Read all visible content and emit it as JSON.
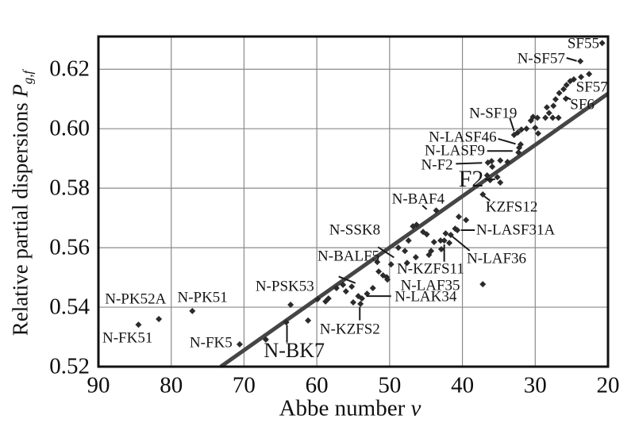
{
  "colors": {
    "point": "#2b2b2b",
    "normal_line": "#454545",
    "grid": "#8a8a8a",
    "border": "#111111",
    "text": "#111111",
    "background": "#ffffff"
  },
  "chart_data": {
    "type": "scatter",
    "title": "",
    "xlabel": "Abbe number v",
    "ylabel": "Relative partial dispersions Pg,f",
    "x_axis": {
      "label_prefix": "Abbe number ",
      "label_symbol": "v",
      "min": 20,
      "max": 90,
      "reversed": true,
      "ticks": [
        "90",
        "80",
        "70",
        "60",
        "50",
        "40",
        "30",
        "20"
      ],
      "grid": true
    },
    "y_axis": {
      "label_prefix": "Relative partial dispersions ",
      "label_symbol": "P",
      "label_subscript": "g,f",
      "min": 0.52,
      "max": 0.631,
      "ticks": [
        "0.52",
        "0.54",
        "0.56",
        "0.58",
        "0.60",
        "0.62"
      ],
      "grid": true
    },
    "normal_line": {
      "x": [
        73.2,
        20.0
      ],
      "y": [
        0.52,
        0.6118
      ]
    },
    "points": [
      [
        84.5,
        0.5341
      ],
      [
        81.7,
        0.536
      ],
      [
        77.1,
        0.5387
      ],
      [
        70.6,
        0.5275
      ],
      [
        67.0,
        0.5291
      ],
      [
        64.2,
        0.5349
      ],
      [
        63.6,
        0.5408
      ],
      [
        61.2,
        0.5355
      ],
      [
        59.9,
        0.5427
      ],
      [
        58.8,
        0.5419
      ],
      [
        58.4,
        0.5429
      ],
      [
        57.3,
        0.5464
      ],
      [
        56.4,
        0.5475
      ],
      [
        56.0,
        0.5453
      ],
      [
        55.2,
        0.5469
      ],
      [
        55.0,
        0.5416
      ],
      [
        54.3,
        0.5437
      ],
      [
        53.8,
        0.5429
      ],
      [
        54.0,
        0.5411
      ],
      [
        53.1,
        0.5445
      ],
      [
        52.3,
        0.5464
      ],
      [
        51.7,
        0.5552
      ],
      [
        51.5,
        0.552
      ],
      [
        50.9,
        0.5507
      ],
      [
        50.4,
        0.5501
      ],
      [
        50.3,
        0.5493
      ],
      [
        49.8,
        0.5544
      ],
      [
        48.8,
        0.56
      ],
      [
        47.9,
        0.5589
      ],
      [
        47.6,
        0.5549
      ],
      [
        47.4,
        0.5624
      ],
      [
        46.8,
        0.5672
      ],
      [
        46.3,
        0.5677
      ],
      [
        46.4,
        0.5568
      ],
      [
        45.4,
        0.5653
      ],
      [
        44.9,
        0.5645
      ],
      [
        44.6,
        0.5576
      ],
      [
        44.3,
        0.5589
      ],
      [
        43.9,
        0.5619
      ],
      [
        43.6,
        0.5725
      ],
      [
        43.0,
        0.5624
      ],
      [
        42.9,
        0.5595
      ],
      [
        42.5,
        0.5624
      ],
      [
        42.3,
        0.5648
      ],
      [
        41.8,
        0.5616
      ],
      [
        41.0,
        0.5664
      ],
      [
        40.7,
        0.5659
      ],
      [
        41.6,
        0.5643
      ],
      [
        40.5,
        0.5704
      ],
      [
        39.5,
        0.5693
      ],
      [
        37.2,
        0.5477
      ],
      [
        37.2,
        0.5779
      ],
      [
        36.6,
        0.5843
      ],
      [
        36.2,
        0.5827
      ],
      [
        35.2,
        0.5837
      ],
      [
        34.8,
        0.5819
      ],
      [
        36.5,
        0.5886
      ],
      [
        36.0,
        0.5891
      ],
      [
        34.8,
        0.5893
      ],
      [
        33.8,
        0.5888
      ],
      [
        35.9,
        0.5872
      ],
      [
        32.9,
        0.5979
      ],
      [
        32.4,
        0.5987
      ],
      [
        32.0,
        0.5947
      ],
      [
        32.2,
        0.5936
      ],
      [
        32.3,
        0.592
      ],
      [
        31.9,
        0.5997
      ],
      [
        31.2,
        0.6
      ],
      [
        30.6,
        0.6027
      ],
      [
        30.3,
        0.604
      ],
      [
        29.7,
        0.6037
      ],
      [
        30.0,
        0.6003
      ],
      [
        29.6,
        0.5984
      ],
      [
        28.6,
        0.6037
      ],
      [
        28.4,
        0.6072
      ],
      [
        28.1,
        0.6053
      ],
      [
        27.6,
        0.6037
      ],
      [
        27.5,
        0.6077
      ],
      [
        27.2,
        0.6099
      ],
      [
        26.8,
        0.6037
      ],
      [
        26.7,
        0.612
      ],
      [
        26.1,
        0.6133
      ],
      [
        25.7,
        0.6147
      ],
      [
        25.2,
        0.616
      ],
      [
        24.7,
        0.6166
      ],
      [
        25.8,
        0.6101
      ],
      [
        23.7,
        0.6174
      ],
      [
        22.6,
        0.6184
      ],
      [
        23.8,
        0.6227
      ],
      [
        20.8,
        0.6288
      ]
    ],
    "glass_labels": [
      {
        "text": "N-FK51",
        "v": 86.0,
        "p": 0.5296,
        "ha": "m"
      },
      {
        "text": "N-PK52A",
        "v": 84.9,
        "p": 0.5427,
        "ha": "m"
      },
      {
        "text": "N-PK51",
        "v": 75.7,
        "p": 0.5432,
        "ha": "m"
      },
      {
        "text": "N-FK5",
        "v": 71.6,
        "p": 0.528,
        "ha": "r"
      },
      {
        "text": "N-PSK53",
        "v": 64.4,
        "p": 0.5469,
        "ha": "m"
      },
      {
        "text": "N-BK7",
        "v": 63.1,
        "p": 0.5253,
        "ha": "m",
        "fs": 26,
        "ptr": [
          64.1,
          0.5281,
          64.1,
          0.534
        ]
      },
      {
        "text": "N-KZFS2",
        "v": 59.6,
        "p": 0.5325,
        "ha": "l",
        "ptr": [
          54.1,
          0.5356,
          54.1,
          0.5401
        ]
      },
      {
        "text": "N-LAK34",
        "v": 49.3,
        "p": 0.5435,
        "ha": "l",
        "ptr": [
          49.8,
          0.5437,
          53.2,
          0.5437
        ]
      },
      {
        "text": "N-LAF35",
        "v": 48.5,
        "p": 0.5472,
        "ha": "l"
      },
      {
        "text": "N-KZFS11",
        "v": 49.0,
        "p": 0.5528,
        "ha": "l",
        "ptr": [
          42.5,
          0.5553,
          42.5,
          0.5611
        ]
      },
      {
        "text": "N-BALF5",
        "v": 59.9,
        "p": 0.5571,
        "ha": "l",
        "ptr": [
          57.0,
          0.5503,
          54.7,
          0.5481
        ]
      },
      {
        "text": "N-SSK8",
        "v": 58.3,
        "p": 0.5659,
        "ha": "l",
        "ptr": [
          51.6,
          0.5602,
          49.4,
          0.5567
        ]
      },
      {
        "text": "N-LAF36",
        "v": 39.4,
        "p": 0.5563,
        "ha": "l",
        "ptr": [
          39.0,
          0.559,
          41.4,
          0.5638
        ]
      },
      {
        "text": "N-LASF31A",
        "v": 38.1,
        "p": 0.5659,
        "ha": "l",
        "ptr": [
          38.3,
          0.5659,
          40.2,
          0.5659
        ]
      },
      {
        "text": "KZFS12",
        "v": 36.8,
        "p": 0.5736,
        "ha": "l",
        "ptr": [
          36.2,
          0.5758,
          37.0,
          0.5773
        ]
      },
      {
        "text": "N-BAF4",
        "v": 49.7,
        "p": 0.5763,
        "ha": "l",
        "ptr": [
          45.5,
          0.5742,
          44.9,
          0.5729
        ]
      },
      {
        "text": "F2",
        "v": 38.8,
        "p": 0.5829,
        "ha": "m",
        "fs": 30,
        "ptr": [
          36.9,
          0.583,
          35.5,
          0.583
        ]
      },
      {
        "text": "N-F2",
        "v": 41.3,
        "p": 0.5877,
        "ha": "r",
        "ptr": [
          40.9,
          0.5882,
          37.3,
          0.5885
        ]
      },
      {
        "text": "N-LASF9",
        "v": 36.9,
        "p": 0.5925,
        "ha": "r",
        "ptr": [
          36.6,
          0.5925,
          33.1,
          0.5925
        ]
      },
      {
        "text": "N-LASF46",
        "v": 35.3,
        "p": 0.5971,
        "ha": "r",
        "ptr": [
          35.1,
          0.5966,
          32.7,
          0.5949
        ]
      },
      {
        "text": "N-SF19",
        "v": 32.5,
        "p": 0.6051,
        "ha": "r",
        "ptr": [
          33.5,
          0.6037,
          32.9,
          0.5992
        ]
      },
      {
        "text": "SF6",
        "v": 25.2,
        "p": 0.608,
        "ha": "l",
        "ptr": [
          25.7,
          0.6106,
          25.1,
          0.6098
        ]
      },
      {
        "text": "SF57",
        "v": 24.4,
        "p": 0.6139,
        "ha": "l"
      },
      {
        "text": "N-SF57",
        "v": 25.9,
        "p": 0.6235,
        "ha": "r",
        "ptr": [
          25.7,
          0.6238,
          24.3,
          0.6228
        ]
      },
      {
        "text": "SF55",
        "v": 21.2,
        "p": 0.6286,
        "ha": "r"
      }
    ]
  }
}
